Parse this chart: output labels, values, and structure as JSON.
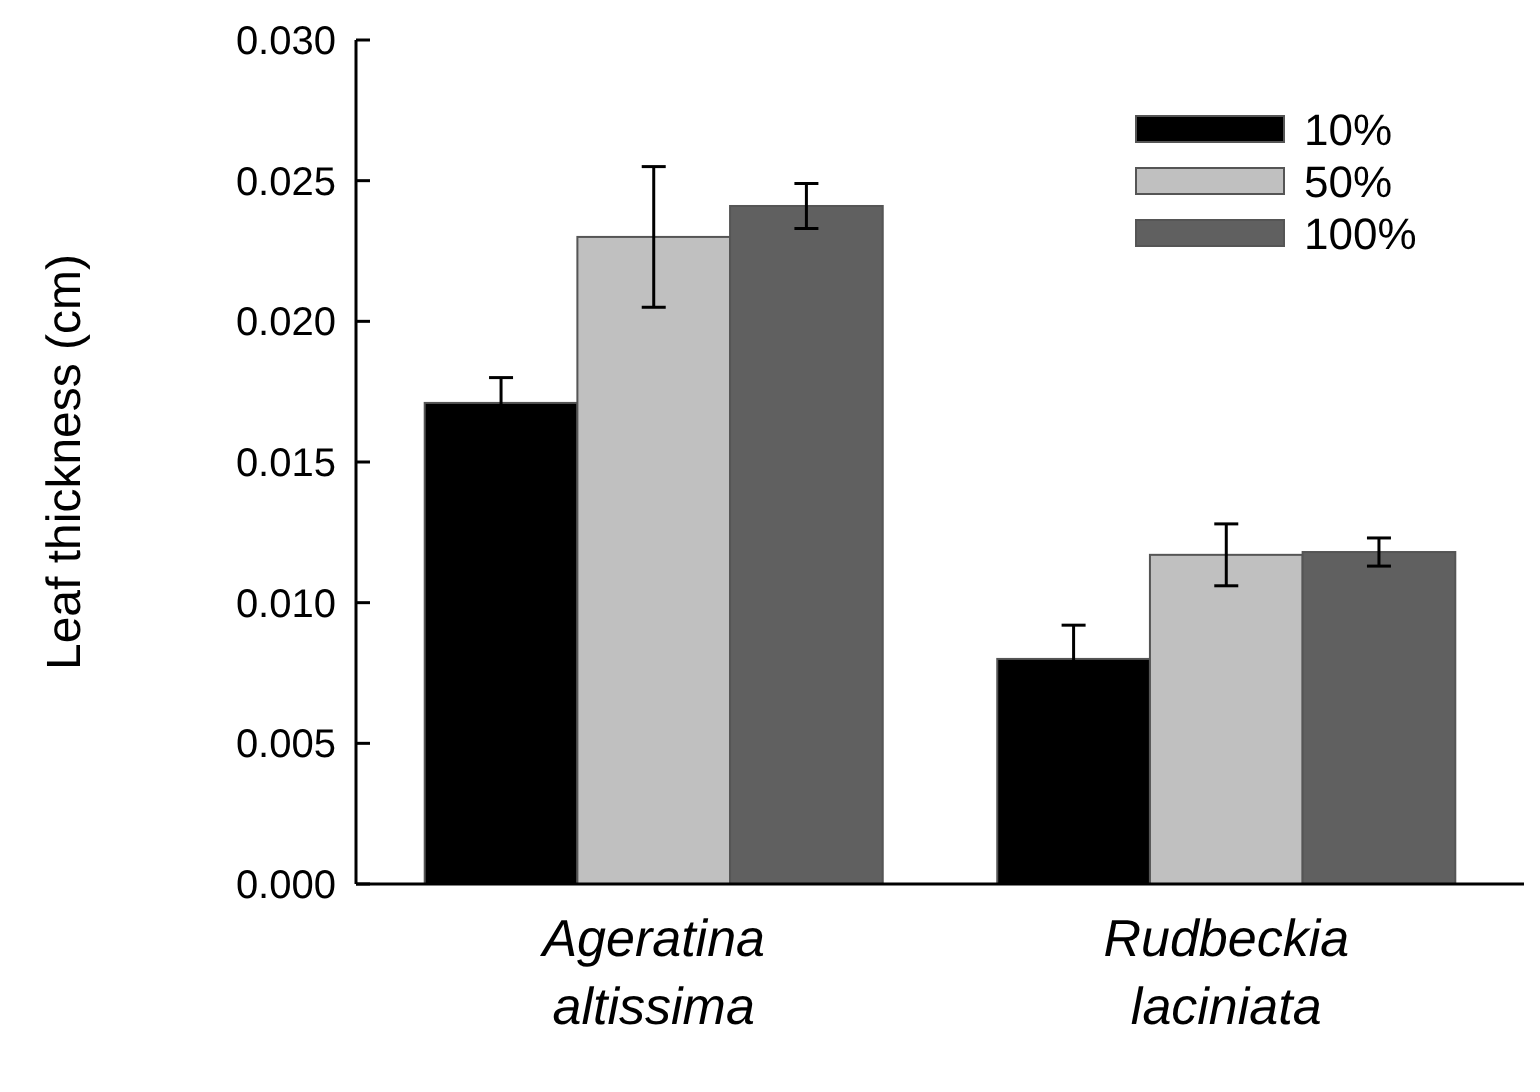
{
  "chart_data": {
    "type": "bar",
    "ylabel": "Leaf thickness (cm)",
    "categories": [
      "Ageratina altissima",
      "Rudbeckia laciniata"
    ],
    "series": [
      {
        "name": "10%",
        "color": "#000000",
        "values": [
          0.0171,
          0.008
        ],
        "errors": [
          0.0009,
          0.0012
        ]
      },
      {
        "name": "50%",
        "color": "#c0c0c0",
        "values": [
          0.023,
          0.0117
        ],
        "errors": [
          0.0025,
          0.0011
        ]
      },
      {
        "name": "100%",
        "color": "#606060",
        "values": [
          0.0241,
          0.0118
        ],
        "errors": [
          0.0008,
          0.0005
        ]
      }
    ],
    "ylim": [
      0,
      0.03
    ],
    "yticks": [
      {
        "value": 0,
        "label": "0.000"
      },
      {
        "value": 0.005,
        "label": "0.005"
      },
      {
        "value": 0.01,
        "label": "0.010"
      },
      {
        "value": 0.015,
        "label": "0.015"
      },
      {
        "value": 0.02,
        "label": "0.020"
      },
      {
        "value": 0.025,
        "label": "0.025"
      },
      {
        "value": 0.03,
        "label": "0.030"
      }
    ],
    "legend": "top right"
  }
}
